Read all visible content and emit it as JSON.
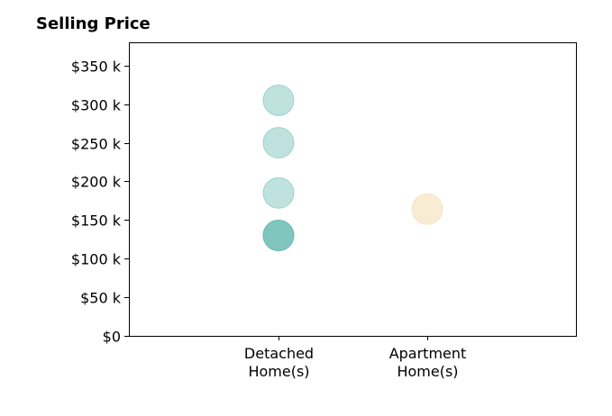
{
  "chart_data": {
    "type": "scatter",
    "title": "Selling Price",
    "xlabel": "",
    "ylabel": "",
    "categories": [
      [
        "Detached",
        "Home(s)"
      ],
      [
        "Apartment",
        "Home(s)"
      ]
    ],
    "ylim": [
      0,
      380000
    ],
    "y_ticks": [
      0,
      50000,
      100000,
      150000,
      200000,
      250000,
      300000,
      350000
    ],
    "y_tick_labels": [
      "$0",
      "$50 k",
      "$100 k",
      "$150 k",
      "$200 k",
      "$250 k",
      "$300 k",
      "$350 k"
    ],
    "grid": false,
    "series": [
      {
        "category_index": 0,
        "color": "#5fb7ad",
        "alpha": 0.4,
        "values": [
          305000,
          250000,
          185000,
          130000,
          130000,
          130000
        ]
      },
      {
        "category_index": 1,
        "color": "#f2ddb0",
        "alpha": 0.55,
        "values": [
          164000
        ]
      }
    ]
  }
}
